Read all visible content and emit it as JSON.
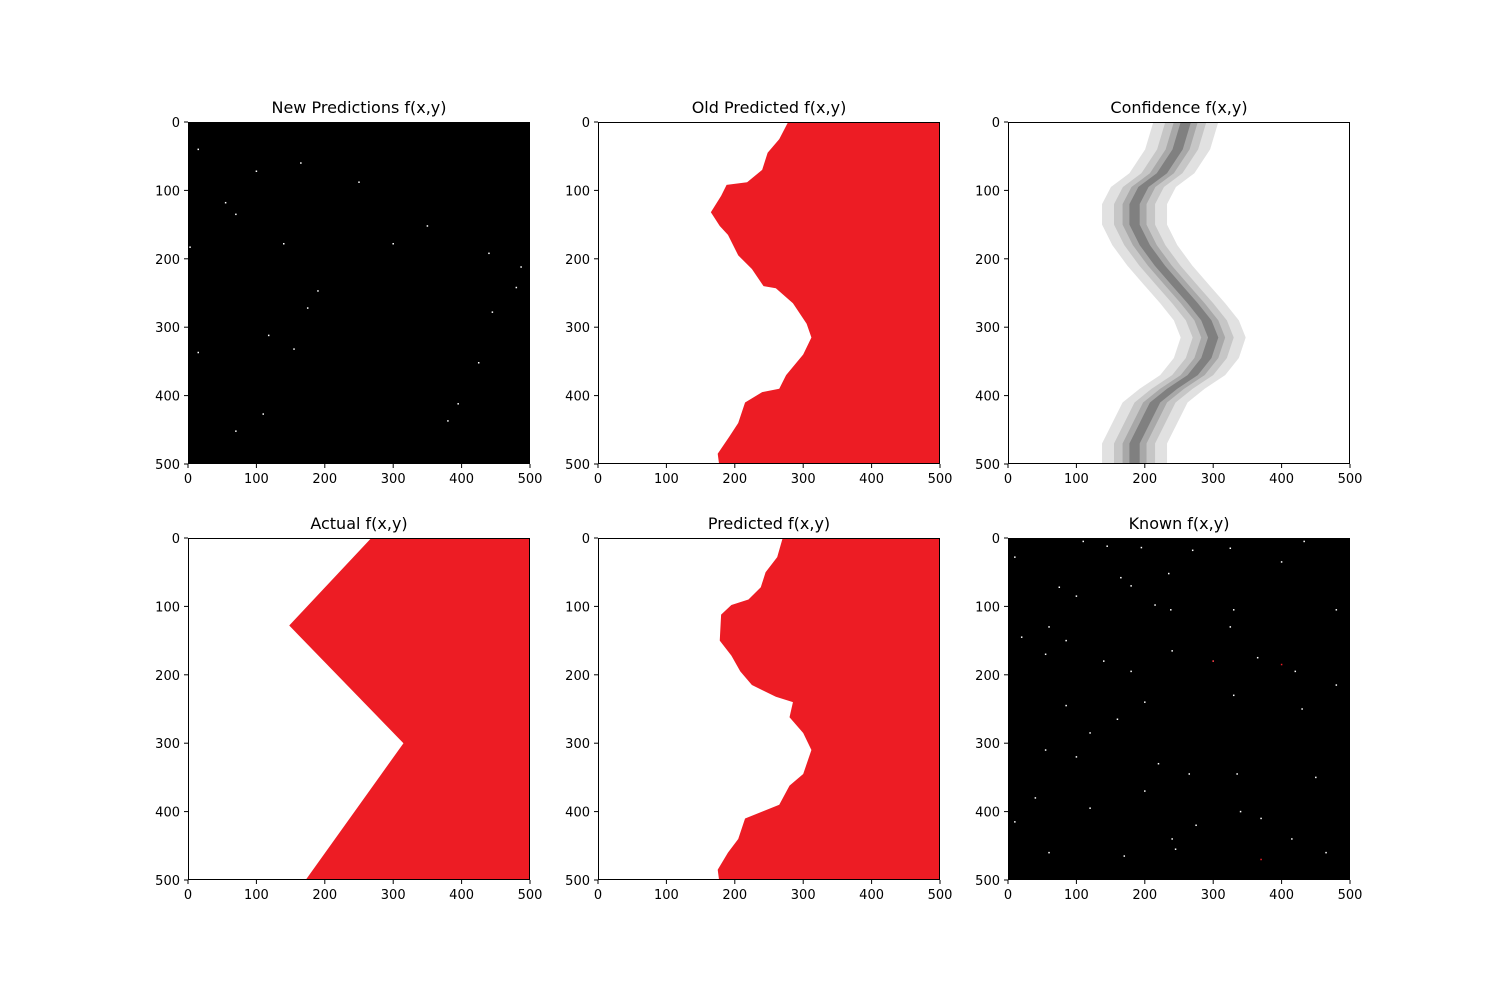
{
  "colors": {
    "red": "#ed1c24",
    "white": "#ffffff",
    "black": "#000000",
    "gray_light": "#e1e1e1",
    "gray_mid": "#c6c6c6",
    "gray_dark": "#a8a8a8",
    "gray_core": "#808080"
  },
  "chart_data": [
    {
      "type": "heatmap",
      "title": "New Predictions f(x,y)",
      "xlim": [
        0,
        500
      ],
      "ylim": [
        500,
        0
      ],
      "xticks": [
        0,
        100,
        200,
        300,
        400,
        500
      ],
      "yticks": [
        0,
        100,
        200,
        300,
        400,
        500
      ],
      "background": "#000000",
      "points": [
        [
          15,
          40
        ],
        [
          165,
          60
        ],
        [
          100,
          72
        ],
        [
          250,
          88
        ],
        [
          55,
          118
        ],
        [
          70,
          135
        ],
        [
          3,
          183
        ],
        [
          140,
          178
        ],
        [
          300,
          178
        ],
        [
          350,
          152
        ],
        [
          440,
          192
        ],
        [
          487,
          212
        ],
        [
          480,
          242
        ],
        [
          190,
          247
        ],
        [
          175,
          272
        ],
        [
          445,
          278
        ],
        [
          118,
          312
        ],
        [
          155,
          332
        ],
        [
          15,
          337
        ],
        [
          425,
          352
        ],
        [
          395,
          412
        ],
        [
          110,
          427
        ],
        [
          380,
          437
        ],
        [
          70,
          452
        ]
      ]
    },
    {
      "type": "heatmap",
      "title": "Old Predicted f(x,y)",
      "xlim": [
        0,
        500
      ],
      "ylim": [
        500,
        0
      ],
      "xticks": [
        0,
        100,
        200,
        300,
        400,
        500
      ],
      "yticks": [
        0,
        100,
        200,
        300,
        400,
        500
      ],
      "boundary": [
        [
          278,
          0
        ],
        [
          265,
          25
        ],
        [
          248,
          45
        ],
        [
          240,
          70
        ],
        [
          218,
          88
        ],
        [
          188,
          92
        ],
        [
          180,
          108
        ],
        [
          165,
          132
        ],
        [
          178,
          152
        ],
        [
          190,
          165
        ],
        [
          205,
          195
        ],
        [
          225,
          215
        ],
        [
          242,
          240
        ],
        [
          260,
          243
        ],
        [
          285,
          265
        ],
        [
          305,
          295
        ],
        [
          312,
          315
        ],
        [
          300,
          340
        ],
        [
          275,
          370
        ],
        [
          265,
          390
        ],
        [
          240,
          395
        ],
        [
          215,
          410
        ],
        [
          205,
          440
        ],
        [
          192,
          460
        ],
        [
          175,
          485
        ],
        [
          177,
          500
        ]
      ]
    },
    {
      "type": "heatmap",
      "title": "Confidence f(x,y)",
      "xlim": [
        0,
        500
      ],
      "ylim": [
        500,
        0
      ],
      "xticks": [
        0,
        100,
        200,
        300,
        400,
        500
      ],
      "yticks": [
        0,
        100,
        200,
        300,
        400,
        500
      ],
      "centerline": [
        [
          260,
          0
        ],
        [
          248,
          40
        ],
        [
          225,
          75
        ],
        [
          198,
          95
        ],
        [
          185,
          120
        ],
        [
          185,
          150
        ],
        [
          200,
          180
        ],
        [
          222,
          210
        ],
        [
          248,
          240
        ],
        [
          270,
          265
        ],
        [
          290,
          290
        ],
        [
          300,
          315
        ],
        [
          290,
          345
        ],
        [
          270,
          370
        ],
        [
          240,
          390
        ],
        [
          215,
          410
        ],
        [
          200,
          440
        ],
        [
          185,
          470
        ],
        [
          185,
          500
        ]
      ],
      "band_widths": [
        95,
        60,
        35,
        15
      ]
    },
    {
      "type": "heatmap",
      "title": "Actual f(x,y)",
      "xlim": [
        0,
        500
      ],
      "ylim": [
        500,
        0
      ],
      "xticks": [
        0,
        100,
        200,
        300,
        400,
        500
      ],
      "yticks": [
        0,
        100,
        200,
        300,
        400,
        500
      ],
      "boundary": [
        [
          268,
          0
        ],
        [
          148,
          128
        ],
        [
          315,
          300
        ],
        [
          172,
          500
        ]
      ]
    },
    {
      "type": "heatmap",
      "title": "Predicted f(x,y)",
      "xlim": [
        0,
        500
      ],
      "ylim": [
        500,
        0
      ],
      "xticks": [
        0,
        100,
        200,
        300,
        400,
        500
      ],
      "yticks": [
        0,
        100,
        200,
        300,
        400,
        500
      ],
      "boundary": [
        [
          270,
          0
        ],
        [
          262,
          28
        ],
        [
          245,
          50
        ],
        [
          238,
          72
        ],
        [
          220,
          90
        ],
        [
          195,
          98
        ],
        [
          180,
          112
        ],
        [
          178,
          150
        ],
        [
          195,
          172
        ],
        [
          208,
          195
        ],
        [
          225,
          215
        ],
        [
          260,
          232
        ],
        [
          285,
          240
        ],
        [
          280,
          262
        ],
        [
          300,
          285
        ],
        [
          312,
          310
        ],
        [
          300,
          345
        ],
        [
          280,
          362
        ],
        [
          265,
          390
        ],
        [
          240,
          400
        ],
        [
          215,
          410
        ],
        [
          205,
          440
        ],
        [
          190,
          460
        ],
        [
          175,
          485
        ],
        [
          177,
          500
        ]
      ]
    },
    {
      "type": "heatmap",
      "title": "Known f(x,y)",
      "xlim": [
        0,
        500
      ],
      "ylim": [
        500,
        0
      ],
      "xticks": [
        0,
        100,
        200,
        300,
        400,
        500
      ],
      "yticks": [
        0,
        100,
        200,
        300,
        400,
        500
      ],
      "background": "#000000",
      "points": [
        [
          110,
          5
        ],
        [
          145,
          12
        ],
        [
          195,
          14
        ],
        [
          270,
          18
        ],
        [
          325,
          15
        ],
        [
          433,
          5
        ],
        [
          10,
          28
        ],
        [
          400,
          35
        ],
        [
          235,
          52
        ],
        [
          165,
          58
        ],
        [
          180,
          70
        ],
        [
          75,
          72
        ],
        [
          100,
          85
        ],
        [
          215,
          98
        ],
        [
          238,
          105
        ],
        [
          330,
          105
        ],
        [
          480,
          105
        ],
        [
          325,
          130
        ],
        [
          60,
          130
        ],
        [
          20,
          145
        ],
        [
          85,
          150
        ],
        [
          55,
          170
        ],
        [
          240,
          165
        ],
        [
          300,
          180
        ],
        [
          365,
          175
        ],
        [
          140,
          180
        ],
        [
          180,
          195
        ],
        [
          420,
          195
        ],
        [
          480,
          215
        ],
        [
          330,
          230
        ],
        [
          200,
          240
        ],
        [
          85,
          245
        ],
        [
          430,
          250
        ],
        [
          160,
          265
        ],
        [
          120,
          285
        ],
        [
          55,
          310
        ],
        [
          100,
          320
        ],
        [
          220,
          330
        ],
        [
          335,
          345
        ],
        [
          265,
          345
        ],
        [
          450,
          350
        ],
        [
          200,
          370
        ],
        [
          120,
          395
        ],
        [
          275,
          420
        ],
        [
          370,
          410
        ],
        [
          340,
          400
        ],
        [
          60,
          460
        ],
        [
          170,
          465
        ],
        [
          245,
          455
        ],
        [
          465,
          460
        ],
        [
          10,
          415
        ],
        [
          40,
          380
        ],
        [
          415,
          440
        ],
        [
          240,
          440
        ]
      ],
      "red_points": [
        [
          300,
          180
        ],
        [
          400,
          185
        ],
        [
          370,
          470
        ]
      ]
    }
  ]
}
